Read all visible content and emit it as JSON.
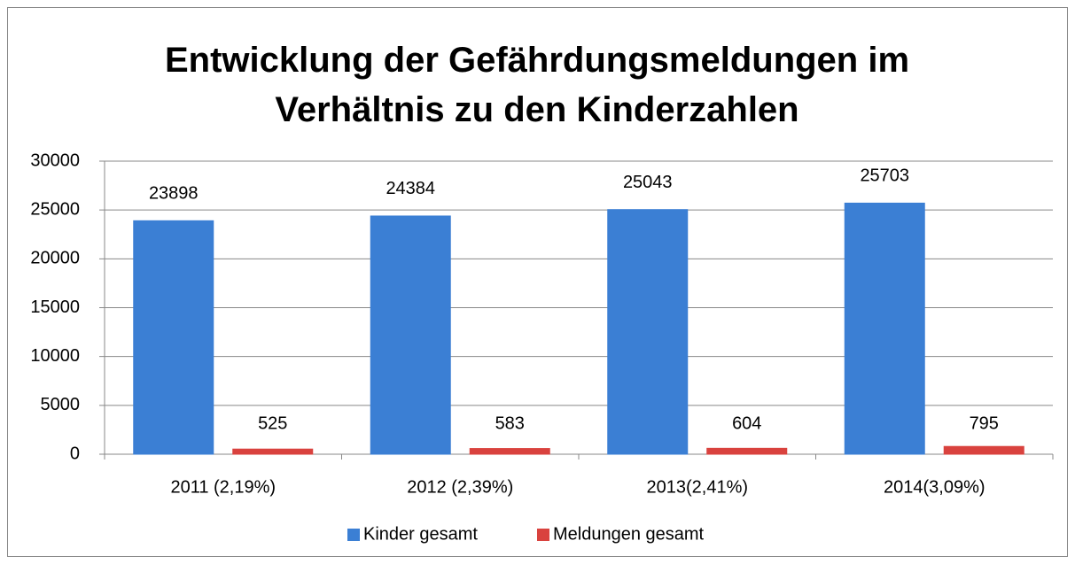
{
  "chart_data": {
    "type": "bar",
    "title": "Entwicklung der Gefährdungsmeldungen im Verhältnis zu den Kinderzahlen",
    "categories": [
      "2011 (2,19%)",
      "2012 (2,39%)",
      "2013(2,41%)",
      "2014(3,09%)"
    ],
    "series": [
      {
        "name": "Kinder gesamt",
        "color": "#3b7fd4",
        "values": [
          23898,
          24384,
          25043,
          25703
        ]
      },
      {
        "name": "Meldungen gesamt",
        "color": "#d9423e",
        "values": [
          525,
          583,
          604,
          795
        ]
      }
    ],
    "ylim": [
      0,
      30000
    ],
    "yticks": [
      0,
      5000,
      10000,
      15000,
      20000,
      25000,
      30000
    ],
    "grid": true,
    "legend": "bottom"
  }
}
